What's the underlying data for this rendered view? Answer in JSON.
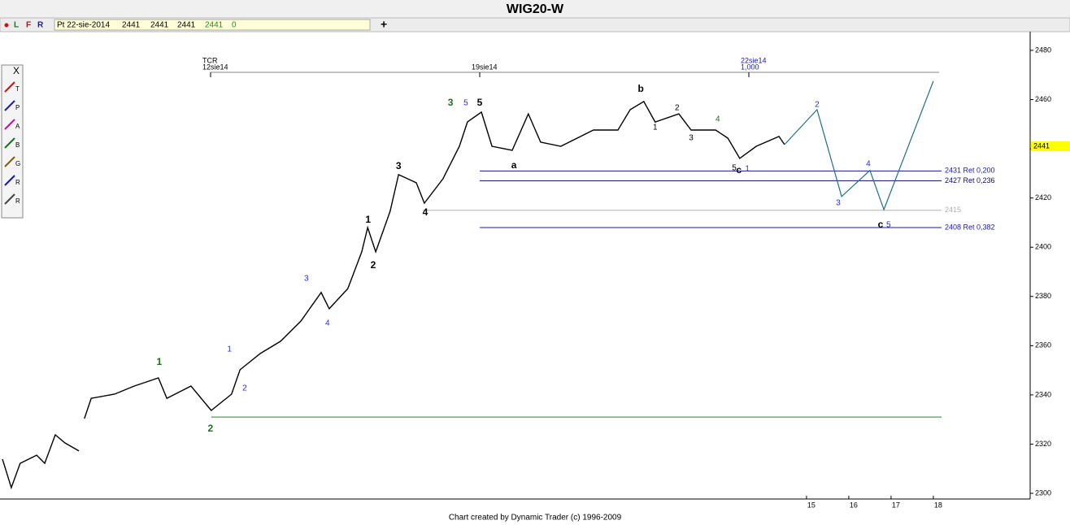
{
  "title": "WIG20-W",
  "toolbar": {
    "dots": [
      "L",
      "F",
      "R"
    ],
    "date": "Pt 22-sie-2014",
    "open": 2441,
    "high": 2441,
    "low": 2441,
    "close": 2441,
    "change": 0,
    "plus": "+"
  },
  "tools": {
    "close": "X",
    "letters": [
      "T",
      "P",
      "A",
      "B",
      "G",
      "R",
      "R"
    ]
  },
  "time_markers": [
    {
      "top": "TCR",
      "label": "12sie14"
    },
    {
      "label": "19sie14"
    },
    {
      "top": "22sie14",
      "label": "1,000"
    }
  ],
  "footer": "Chart created by Dynamic Trader  (c) 1996-2009",
  "chart_data": {
    "type": "line",
    "xlim": [
      -4.077,
      20.29
    ],
    "xticks": [
      15,
      16,
      17,
      18
    ],
    "ylim": [
      2297.7,
      2487.9
    ],
    "yticks": [
      2300,
      2320,
      2340,
      2360,
      2380,
      2400,
      2420,
      2440,
      2460,
      2480
    ],
    "last_price": 2441,
    "series": [
      {
        "color": "#000000",
        "x": [
          -4.02,
          -3.81,
          -3.6,
          -3.21,
          -3.02,
          -2.77,
          -2.54,
          -2.21,
          -2.15,
          -2.08,
          -1.92,
          -1.37,
          -0.9,
          -0.33,
          -0.13,
          0.44,
          0.92,
          1.4,
          1.6,
          2.08,
          2.56,
          3.04,
          3.52,
          3.71,
          4.15,
          4.48,
          4.62,
          4.81,
          5.15,
          5.35,
          5.77,
          5.96,
          6.4,
          6.79,
          6.98,
          7.31,
          7.56,
          8.04,
          8.42,
          8.71,
          9.19,
          9.96,
          10.54,
          10.83,
          11.15,
          11.42,
          11.98,
          12.27,
          12.85,
          13.14,
          13.42,
          13.81,
          14.35,
          14.48
        ],
        "values": [
          2313.9,
          2302.3,
          2312.2,
          2315.5,
          2312.2,
          2323.8,
          2320.5,
          2317.2,
          null,
          2330.4,
          2338.6,
          2340.3,
          2343.6,
          2346.9,
          2338.6,
          2343.6,
          2333.7,
          2340.3,
          2350.2,
          2356.8,
          2361.8,
          2370.0,
          2381.6,
          2375.0,
          2383.2,
          2398.1,
          2408.0,
          2398.1,
          2414.6,
          2429.5,
          2426.2,
          2417.9,
          2427.8,
          2441.0,
          2450.9,
          2454.9,
          2441.0,
          2439.4,
          2454.2,
          2442.7,
          2441.0,
          2447.6,
          2447.6,
          2455.9,
          2459.2,
          2450.9,
          2454.2,
          2447.6,
          2447.6,
          2444.3,
          2436.1,
          2441.0,
          2445.0,
          2441.7
        ]
      },
      {
        "color": "#1f6f7f",
        "x": [
          14.48,
          15.25,
          15.83,
          16.5,
          16.83,
          18.0
        ],
        "values": [
          2441.7,
          2455.9,
          2420.6,
          2431.2,
          2415.3,
          2467.5
        ]
      }
    ],
    "levels": [
      {
        "value": 2431,
        "label": "2431 Ret 0,200",
        "color": "#1a1aa0",
        "x_start": 7.27
      },
      {
        "value": 2427,
        "label": "2427 Ret 0,236",
        "color": "#0a0a70",
        "x_start": 7.27
      },
      {
        "value": 2415,
        "label": "2415",
        "color": "#b0b0b0",
        "x_start": 5.92
      },
      {
        "value": 2408,
        "label": "2408 Ret 0,382",
        "color": "#1a1aa0",
        "x_start": 7.27
      },
      {
        "value": 2331,
        "color": "#2e7d2e",
        "x_start": 0.92
      }
    ],
    "annotations": [
      {
        "text": "1",
        "x": -0.31,
        "y": 2353.2,
        "color": "#1e6e1e",
        "bold": true
      },
      {
        "text": "2",
        "x": 0.9,
        "y": 2326.1,
        "color": "#1e6e1e",
        "bold": true
      },
      {
        "text": "3",
        "x": 6.58,
        "y": 2458.5,
        "color": "#1e6e1e",
        "bold": true
      },
      {
        "text": "1",
        "x": 1.35,
        "y": 2358.5,
        "color": "#2a2ad0"
      },
      {
        "text": "2",
        "x": 1.71,
        "y": 2342.6,
        "color": "#2a2ad0"
      },
      {
        "text": "3",
        "x": 3.17,
        "y": 2387.2,
        "color": "#2a2ad0"
      },
      {
        "text": "4",
        "x": 3.67,
        "y": 2369.0,
        "color": "#2a2ad0"
      },
      {
        "text": "5",
        "x": 6.94,
        "y": 2458.5,
        "color": "#2a2ad0"
      },
      {
        "text": "1",
        "x": 4.63,
        "y": 2411.0,
        "color": "#000000",
        "bold": true
      },
      {
        "text": "2",
        "x": 4.75,
        "y": 2392.5,
        "color": "#000000",
        "bold": true
      },
      {
        "text": "3",
        "x": 5.35,
        "y": 2432.8,
        "color": "#000000",
        "bold": true
      },
      {
        "text": "4",
        "x": 5.98,
        "y": 2414.0,
        "color": "#000000",
        "bold": true
      },
      {
        "text": "5",
        "x": 7.27,
        "y": 2458.5,
        "color": "#000000",
        "bold": true
      },
      {
        "text": "a",
        "x": 8.08,
        "y": 2433.1,
        "color": "#000000",
        "bold": true
      },
      {
        "text": "b",
        "x": 11.08,
        "y": 2464.1,
        "color": "#000000",
        "bold": true
      },
      {
        "text": "c",
        "x": 13.4,
        "y": 2431.1,
        "color": "#000000",
        "bold": true
      },
      {
        "text": "1",
        "x": 11.42,
        "y": 2448.6,
        "color": "#000000"
      },
      {
        "text": "2",
        "x": 11.94,
        "y": 2456.5,
        "color": "#000000"
      },
      {
        "text": "3",
        "x": 12.27,
        "y": 2444.3,
        "color": "#000000"
      },
      {
        "text": "4",
        "x": 12.9,
        "y": 2451.9,
        "color": "#1e6e1e"
      },
      {
        "text": "5",
        "x": 13.29,
        "y": 2432.1,
        "color": "#000000"
      },
      {
        "text": "1",
        "x": 13.6,
        "y": 2431.8,
        "color": "#2a2ad0"
      },
      {
        "text": "2",
        "x": 15.25,
        "y": 2457.9,
        "color": "#2a2ad0"
      },
      {
        "text": "3",
        "x": 15.75,
        "y": 2417.9,
        "color": "#2a2ad0"
      },
      {
        "text": "4",
        "x": 16.46,
        "y": 2433.8,
        "color": "#2a2ad0"
      },
      {
        "text": "c",
        "x": 16.75,
        "y": 2409.0,
        "color": "#000000",
        "bold": true
      },
      {
        "text": "5",
        "x": 16.94,
        "y": 2409.0,
        "color": "#2a2ad0"
      }
    ]
  }
}
